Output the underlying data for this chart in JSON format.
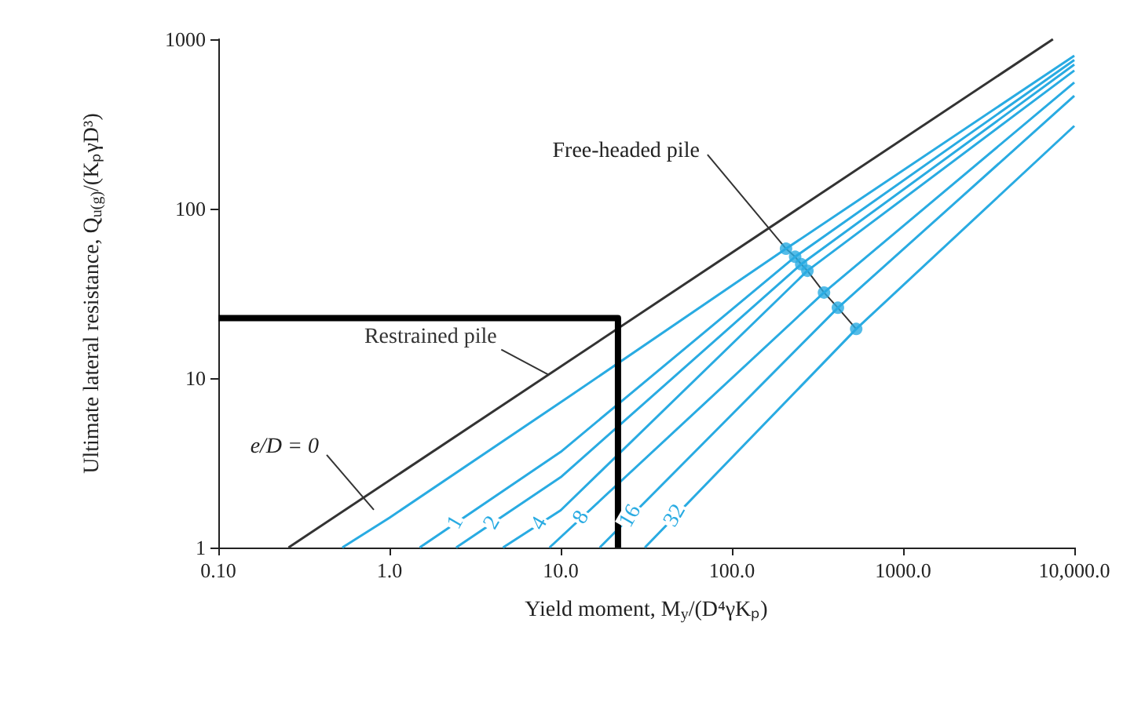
{
  "chart_data": {
    "type": "line",
    "xlabel": "Yield moment, M$_{y}$/(D⁴γKₚ)",
    "ylabel": "Ultimate lateral resistance, Q$_{u(g)}$/(KₚγD³)",
    "log": "xy",
    "xlim": [
      0.1,
      10000
    ],
    "ylim": [
      1,
      1000
    ],
    "xticks": [
      {
        "value": 0.1,
        "label": "0.10"
      },
      {
        "value": 1,
        "label": "1.0"
      },
      {
        "value": 10,
        "label": "10.0"
      },
      {
        "value": 100,
        "label": "100.0"
      },
      {
        "value": 1000,
        "label": "1000.0"
      },
      {
        "value": 10000,
        "label": "10,000.0"
      }
    ],
    "yticks": [
      1,
      10,
      100,
      1000
    ],
    "series": [
      {
        "name": "Restrained pile",
        "color": "#333333",
        "x": [
          0.257,
          7500
        ],
        "values": [
          1,
          1000
        ]
      },
      {
        "name": "e/D = 0",
        "color": "#29abe2",
        "x": [
          0.53,
          1,
          10,
          207,
          10000
        ],
        "values": [
          1,
          1.5,
          7.2,
          58,
          800
        ]
      },
      {
        "name": "1",
        "color": "#29abe2",
        "x": [
          1.5,
          10,
          234,
          10000
        ],
        "values": [
          1,
          3.67,
          52,
          754
        ]
      },
      {
        "name": "2",
        "color": "#29abe2",
        "x": [
          2.45,
          10,
          254,
          10000
        ],
        "values": [
          1,
          2.6,
          47,
          709
        ]
      },
      {
        "name": "4",
        "color": "#29abe2",
        "x": [
          4.6,
          10,
          276,
          10000
        ],
        "values": [
          1,
          1.66,
          43,
          654
        ]
      },
      {
        "name": "8",
        "color": "#29abe2",
        "x": [
          8.6,
          345,
          10000
        ],
        "values": [
          1,
          32,
          556
        ]
      },
      {
        "name": "16",
        "color": "#29abe2",
        "x": [
          16.9,
          416,
          10000
        ],
        "values": [
          1,
          26,
          463
        ]
      },
      {
        "name": "32",
        "color": "#29abe2",
        "x": [
          31,
          532,
          10000
        ],
        "values": [
          1,
          19.5,
          308
        ]
      },
      {
        "type": "scatter",
        "name": "Free-headed pile",
        "color": "#29abe2",
        "marker": "circle",
        "x": [
          207,
          234,
          254,
          276,
          345,
          416,
          532
        ],
        "values": [
          58,
          52,
          47,
          43,
          32,
          26,
          19.5
        ]
      },
      {
        "color": "#000000",
        "x": [
          0.1,
          21.6,
          21.6
        ],
        "values": [
          22.6,
          22.6,
          1
        ]
      }
    ]
  }
}
